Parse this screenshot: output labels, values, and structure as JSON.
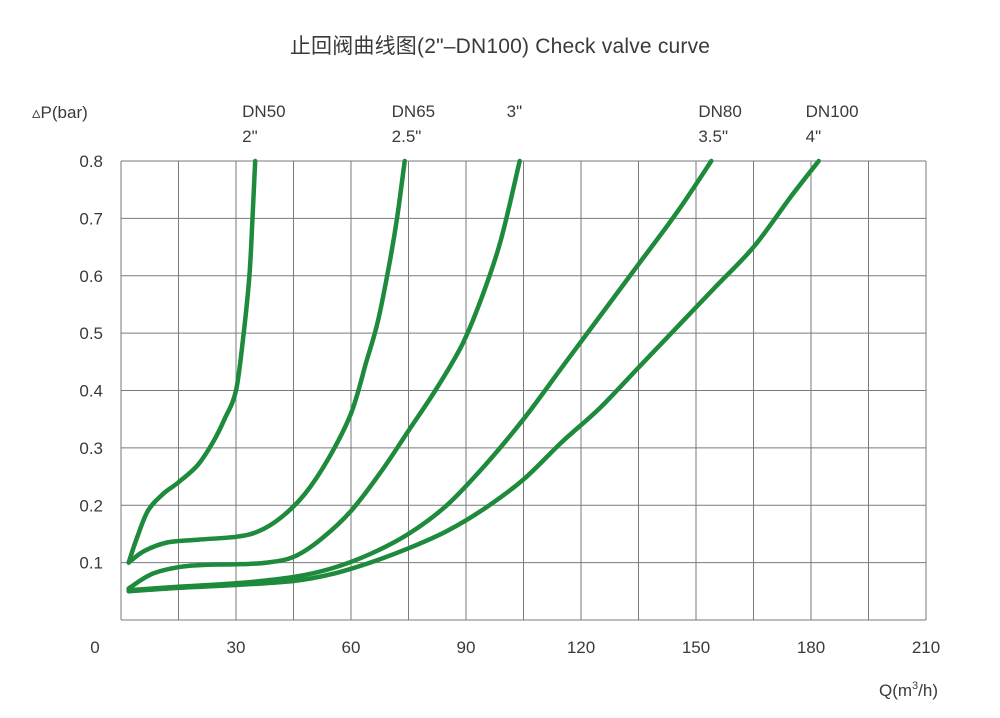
{
  "chart_data": {
    "type": "line",
    "title": "止回阀曲线图(2\"–DN100) Check valve curve",
    "ylabel": "▵P(bar)",
    "xlabel_prefix": "Q(m",
    "xlabel_sup": "3",
    "xlabel_suffix": "/h)",
    "origin_label": "0",
    "xlim": [
      0,
      210
    ],
    "ylim": [
      0,
      0.8
    ],
    "x_ticks": [
      30,
      60,
      90,
      120,
      150,
      180,
      210
    ],
    "y_ticks": [
      "0.1",
      "0.2",
      "0.3",
      "0.4",
      "0.5",
      "0.6",
      "0.7",
      "0.8"
    ],
    "grid": true,
    "line_color": "#1e8a3c",
    "series": [
      {
        "label_lines": [
          "DN50",
          "2\""
        ],
        "points": [
          [
            2,
            0.1
          ],
          [
            4,
            0.14
          ],
          [
            7,
            0.19
          ],
          [
            11,
            0.22
          ],
          [
            15,
            0.24
          ],
          [
            20,
            0.27
          ],
          [
            24,
            0.31
          ],
          [
            27,
            0.35
          ],
          [
            30,
            0.4
          ],
          [
            32,
            0.5
          ],
          [
            33.5,
            0.6
          ],
          [
            34.3,
            0.7
          ],
          [
            35,
            0.8
          ]
        ]
      },
      {
        "label_lines": [
          "DN65",
          "2.5\""
        ],
        "points": [
          [
            2,
            0.1
          ],
          [
            6,
            0.12
          ],
          [
            12,
            0.135
          ],
          [
            20,
            0.14
          ],
          [
            30,
            0.145
          ],
          [
            36,
            0.155
          ],
          [
            42,
            0.18
          ],
          [
            48,
            0.22
          ],
          [
            54,
            0.28
          ],
          [
            60,
            0.36
          ],
          [
            64,
            0.45
          ],
          [
            67,
            0.52
          ],
          [
            70,
            0.62
          ],
          [
            72,
            0.7
          ],
          [
            74,
            0.8
          ]
        ]
      },
      {
        "label_lines": [
          "3\""
        ],
        "points": [
          [
            2,
            0.055
          ],
          [
            8,
            0.08
          ],
          [
            15,
            0.092
          ],
          [
            22,
            0.096
          ],
          [
            30,
            0.097
          ],
          [
            38,
            0.1
          ],
          [
            45,
            0.11
          ],
          [
            52,
            0.14
          ],
          [
            60,
            0.19
          ],
          [
            68,
            0.26
          ],
          [
            75,
            0.33
          ],
          [
            82,
            0.4
          ],
          [
            89,
            0.48
          ],
          [
            94,
            0.56
          ],
          [
            99,
            0.66
          ],
          [
            104,
            0.8
          ]
        ]
      },
      {
        "label_lines": [
          "DN80",
          "3.5\""
        ],
        "points": [
          [
            2,
            0.052
          ],
          [
            15,
            0.058
          ],
          [
            30,
            0.064
          ],
          [
            45,
            0.075
          ],
          [
            55,
            0.09
          ],
          [
            65,
            0.115
          ],
          [
            75,
            0.15
          ],
          [
            85,
            0.2
          ],
          [
            95,
            0.27
          ],
          [
            105,
            0.35
          ],
          [
            115,
            0.44
          ],
          [
            125,
            0.53
          ],
          [
            135,
            0.62
          ],
          [
            145,
            0.71
          ],
          [
            154,
            0.8
          ]
        ]
      },
      {
        "label_lines": [
          "DN100",
          "4\""
        ],
        "points": [
          [
            2,
            0.05
          ],
          [
            15,
            0.056
          ],
          [
            30,
            0.061
          ],
          [
            45,
            0.068
          ],
          [
            55,
            0.08
          ],
          [
            65,
            0.1
          ],
          [
            75,
            0.125
          ],
          [
            85,
            0.155
          ],
          [
            95,
            0.195
          ],
          [
            105,
            0.245
          ],
          [
            115,
            0.31
          ],
          [
            125,
            0.37
          ],
          [
            135,
            0.44
          ],
          [
            145,
            0.51
          ],
          [
            155,
            0.58
          ],
          [
            165,
            0.65
          ],
          [
            175,
            0.74
          ],
          [
            182,
            0.8
          ]
        ]
      }
    ]
  }
}
